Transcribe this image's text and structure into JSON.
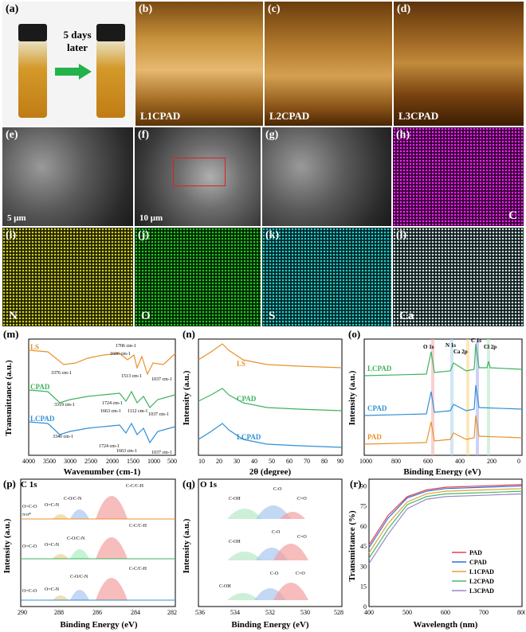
{
  "photo": {
    "label": "(a)",
    "arrow_text": "5 days later"
  },
  "afm": [
    {
      "label": "(b)",
      "sample": "L1CPAD"
    },
    {
      "label": "(c)",
      "sample": "L2CPAD"
    },
    {
      "label": "(d)",
      "sample": "L3CPAD"
    }
  ],
  "sem": [
    {
      "label": "(e)",
      "scale": "5 μm"
    },
    {
      "label": "(f)",
      "scale": "10 μm"
    },
    {
      "label": "(g)",
      "scale": ""
    }
  ],
  "maps": [
    {
      "label": "(h)",
      "element": "C"
    },
    {
      "label": "(i)",
      "element": "N"
    },
    {
      "label": "(j)",
      "element": "O"
    },
    {
      "label": "(k)",
      "element": "S"
    },
    {
      "label": "(l)",
      "element": "Ca"
    }
  ],
  "chart_data": [
    {
      "panel": "(m)",
      "type": "line",
      "xlabel": "Wavenumber (cm-1)",
      "ylabel": "Transmittance (a.u.)",
      "xticks": [
        4000,
        3500,
        3000,
        2500,
        2000,
        1500,
        1000,
        500
      ],
      "series": [
        "LS",
        "CPAD",
        "LCPAD"
      ],
      "annotations": [
        "3376 cm-1",
        "1706 cm-1",
        "1606 cm-1",
        "1513 cm-1",
        "1037 cm-1",
        "3319 cm-1",
        "1724 cm-1",
        "1663 cm-1",
        "1112 cm-1",
        "1037 cm-1",
        "3340 cm-1",
        "1724 cm-1",
        "1663 cm-1",
        "1037 cm-1"
      ]
    },
    {
      "panel": "(n)",
      "type": "line",
      "xlabel": "2θ (degree)",
      "ylabel": "Intensity (a.u.)",
      "xticks": [
        10,
        20,
        30,
        40,
        50,
        60,
        70,
        80,
        90
      ],
      "series": [
        "LS",
        "CPAD",
        "LCPAD"
      ]
    },
    {
      "panel": "(o)",
      "type": "line",
      "xlabel": "Binding Energy (eV)",
      "ylabel": "Intensity (a.u.)",
      "xticks": [
        1000,
        800,
        600,
        400,
        200,
        0
      ],
      "series": [
        "LCPAD",
        "CPAD",
        "PAD"
      ],
      "peaks": [
        "O 1s",
        "N 1s",
        "Ca 2p",
        "C 1s",
        "Cl 2p"
      ]
    },
    {
      "panel": "(p)",
      "type": "area",
      "title": "C 1s",
      "xlabel": "Binding Energy (eV)",
      "ylabel": "Intensity (a.u.)",
      "xticks": [
        290,
        288,
        286,
        284,
        282
      ],
      "peaks": [
        "O=C-O",
        "O=C-N",
        "C-O/C-N",
        "C-C/C-H",
        "π-π*"
      ]
    },
    {
      "panel": "(q)",
      "type": "area",
      "title": "O 1s",
      "xlabel": "Binding Energy (eV)",
      "ylabel": "Intensity (a.u.)",
      "xticks": [
        536,
        534,
        532,
        530,
        528
      ],
      "peaks": [
        "C-OH",
        "C-O",
        "C=O"
      ]
    },
    {
      "panel": "(r)",
      "type": "line",
      "xlabel": "Wavelength (nm)",
      "ylabel": "Transmittance (%)",
      "xticks": [
        400,
        500,
        600,
        700,
        800
      ],
      "yticks": [
        0,
        15,
        30,
        45,
        60,
        75,
        90
      ],
      "ylim": [
        0,
        95
      ],
      "series": [
        {
          "name": "PAD",
          "color": "#e8404a",
          "x": [
            400,
            450,
            500,
            550,
            600,
            700,
            800
          ],
          "values": [
            46,
            68,
            82,
            87,
            89,
            90,
            91
          ]
        },
        {
          "name": "CPAD",
          "color": "#2f6fd6",
          "x": [
            400,
            450,
            500,
            550,
            600,
            700,
            800
          ],
          "values": [
            44,
            66,
            81,
            86,
            88,
            89,
            90
          ]
        },
        {
          "name": "L1CPAD",
          "color": "#e0a33a",
          "x": [
            400,
            450,
            500,
            550,
            600,
            700,
            800
          ],
          "values": [
            40,
            62,
            78,
            84,
            86,
            87,
            88
          ]
        },
        {
          "name": "L2CPAD",
          "color": "#4ab86a",
          "x": [
            400,
            450,
            500,
            550,
            600,
            700,
            800
          ],
          "values": [
            36,
            58,
            76,
            82,
            84,
            85,
            86
          ]
        },
        {
          "name": "L3CPAD",
          "color": "#9a86c8",
          "x": [
            400,
            450,
            500,
            550,
            600,
            700,
            800
          ],
          "values": [
            32,
            54,
            73,
            80,
            82,
            83,
            84
          ]
        }
      ]
    }
  ],
  "labels": {
    "m": "(m)",
    "n": "(n)",
    "o": "(o)",
    "p": "(p)",
    "q": "(q)",
    "r": "(r)"
  }
}
